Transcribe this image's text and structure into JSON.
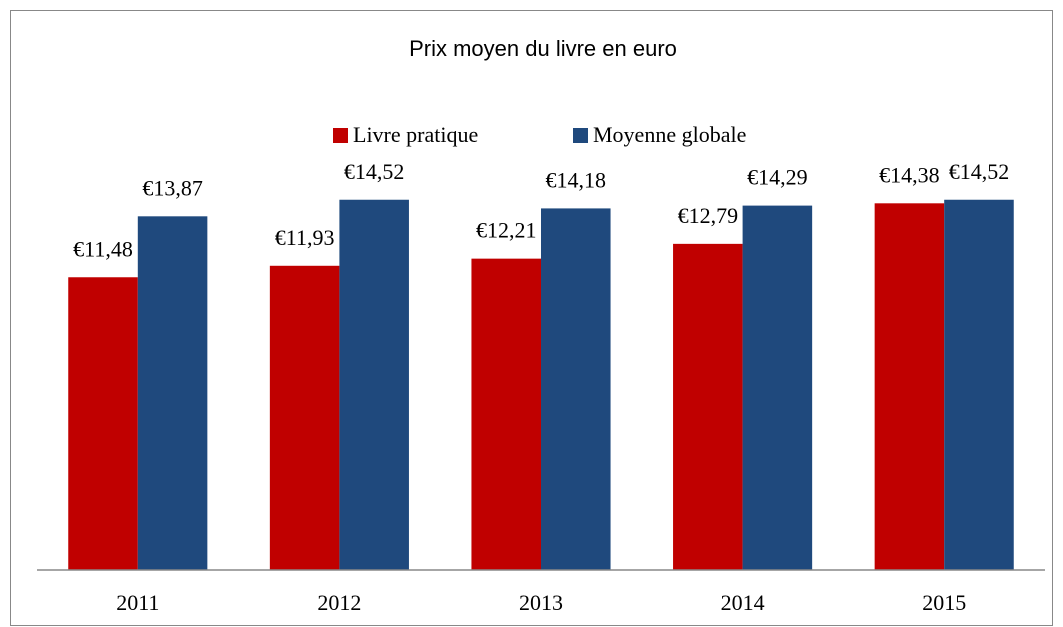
{
  "chart_data": {
    "type": "bar",
    "title": "Prix moyen du livre en euro",
    "categories": [
      "2011",
      "2012",
      "2013",
      "2014",
      "2015"
    ],
    "series": [
      {
        "name": "Livre pratique",
        "color": "#c00000",
        "values": [
          11.48,
          11.93,
          12.21,
          12.79,
          14.38
        ],
        "value_labels": [
          "€11,48",
          "€11,93",
          "€12,21",
          "€12,79",
          "€14,38"
        ]
      },
      {
        "name": "Moyenne globale",
        "color": "#1f497d",
        "values": [
          13.87,
          14.52,
          14.18,
          14.29,
          14.52
        ],
        "value_labels": [
          "€13,87",
          "€14,52",
          "€14,18",
          "€14,29",
          "€14,52"
        ]
      }
    ],
    "ylim": [
      0,
      16
    ],
    "legend": "top",
    "grid": false
  }
}
